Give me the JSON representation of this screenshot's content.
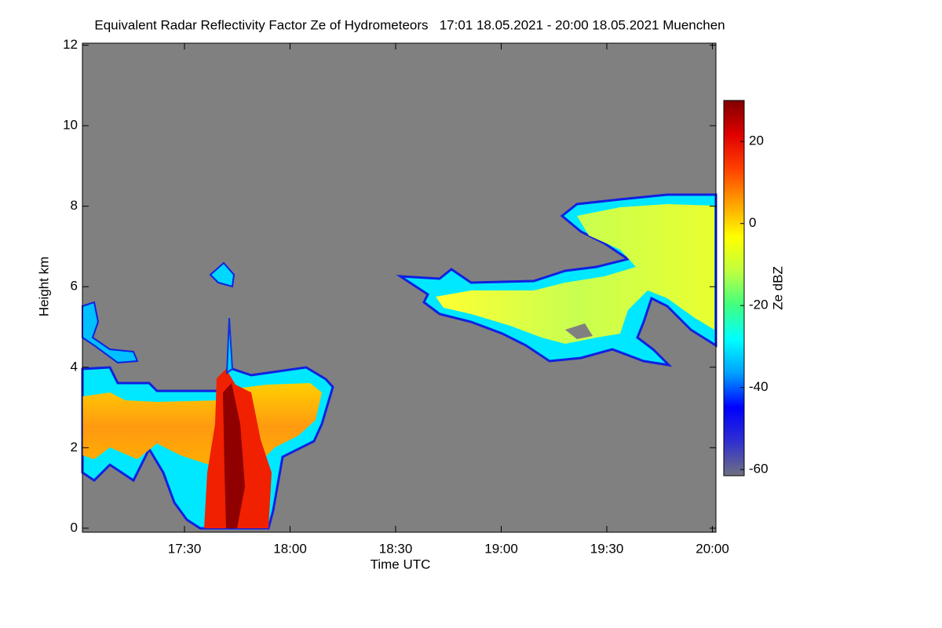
{
  "chart_data": {
    "type": "heatmap",
    "title": "Equivalent Radar Reflectivity Factor Ze of Hydrometeors   17:01 18.05.2021 - 20:00 18.05.2021 Muenchen",
    "xlabel": "Time UTC",
    "ylabel": "Height km",
    "xlim": [
      1021,
      1201
    ],
    "xticks": [
      {
        "value": 1050,
        "label": "17:30"
      },
      {
        "value": 1080,
        "label": "18:00"
      },
      {
        "value": 1110,
        "label": "18:30"
      },
      {
        "value": 1140,
        "label": "19:00"
      },
      {
        "value": 1170,
        "label": "19:30"
      },
      {
        "value": 1200,
        "label": "20:00"
      }
    ],
    "ylim": [
      -0.1,
      12.05
    ],
    "yticks": [
      0,
      2,
      4,
      6,
      8,
      10,
      12
    ],
    "background": "#808080",
    "colorbar": {
      "label": "Ze dBZ",
      "lim": [
        -61.5,
        30
      ],
      "ticks": [
        -60,
        -40,
        -20,
        0,
        20
      ],
      "colors": [
        "#707080",
        "#3030d0",
        "#0000ff",
        "#00a0ff",
        "#00ffff",
        "#40ff80",
        "#c0ff40",
        "#ffff00",
        "#ffa000",
        "#ff4000",
        "#e00000",
        "#800000"
      ]
    }
  }
}
